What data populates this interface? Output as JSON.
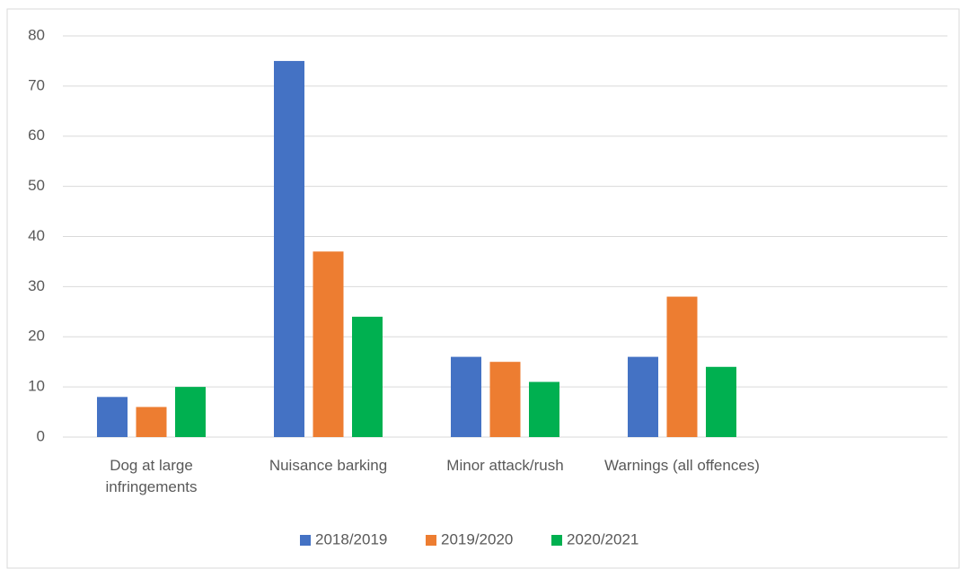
{
  "chart_data": {
    "type": "bar",
    "categories": [
      "Dog at large infringements",
      "Nuisance barking",
      "Minor attack/rush",
      "Warnings (all offences)",
      null
    ],
    "series": [
      {
        "name": "2018/2019",
        "color": "#4472c4",
        "values": [
          8,
          75,
          16,
          16,
          null
        ]
      },
      {
        "name": "2019/2020",
        "color": "#ed7d31",
        "values": [
          6,
          37,
          15,
          28,
          null
        ]
      },
      {
        "name": "2020/2021",
        "color": "#00b050",
        "values": [
          10,
          24,
          11,
          14,
          null
        ]
      }
    ],
    "ylim": [
      0,
      80
    ],
    "yticks": [
      0,
      10,
      20,
      30,
      40,
      50,
      60,
      70,
      80
    ],
    "grid": true,
    "legend": "bottom"
  }
}
